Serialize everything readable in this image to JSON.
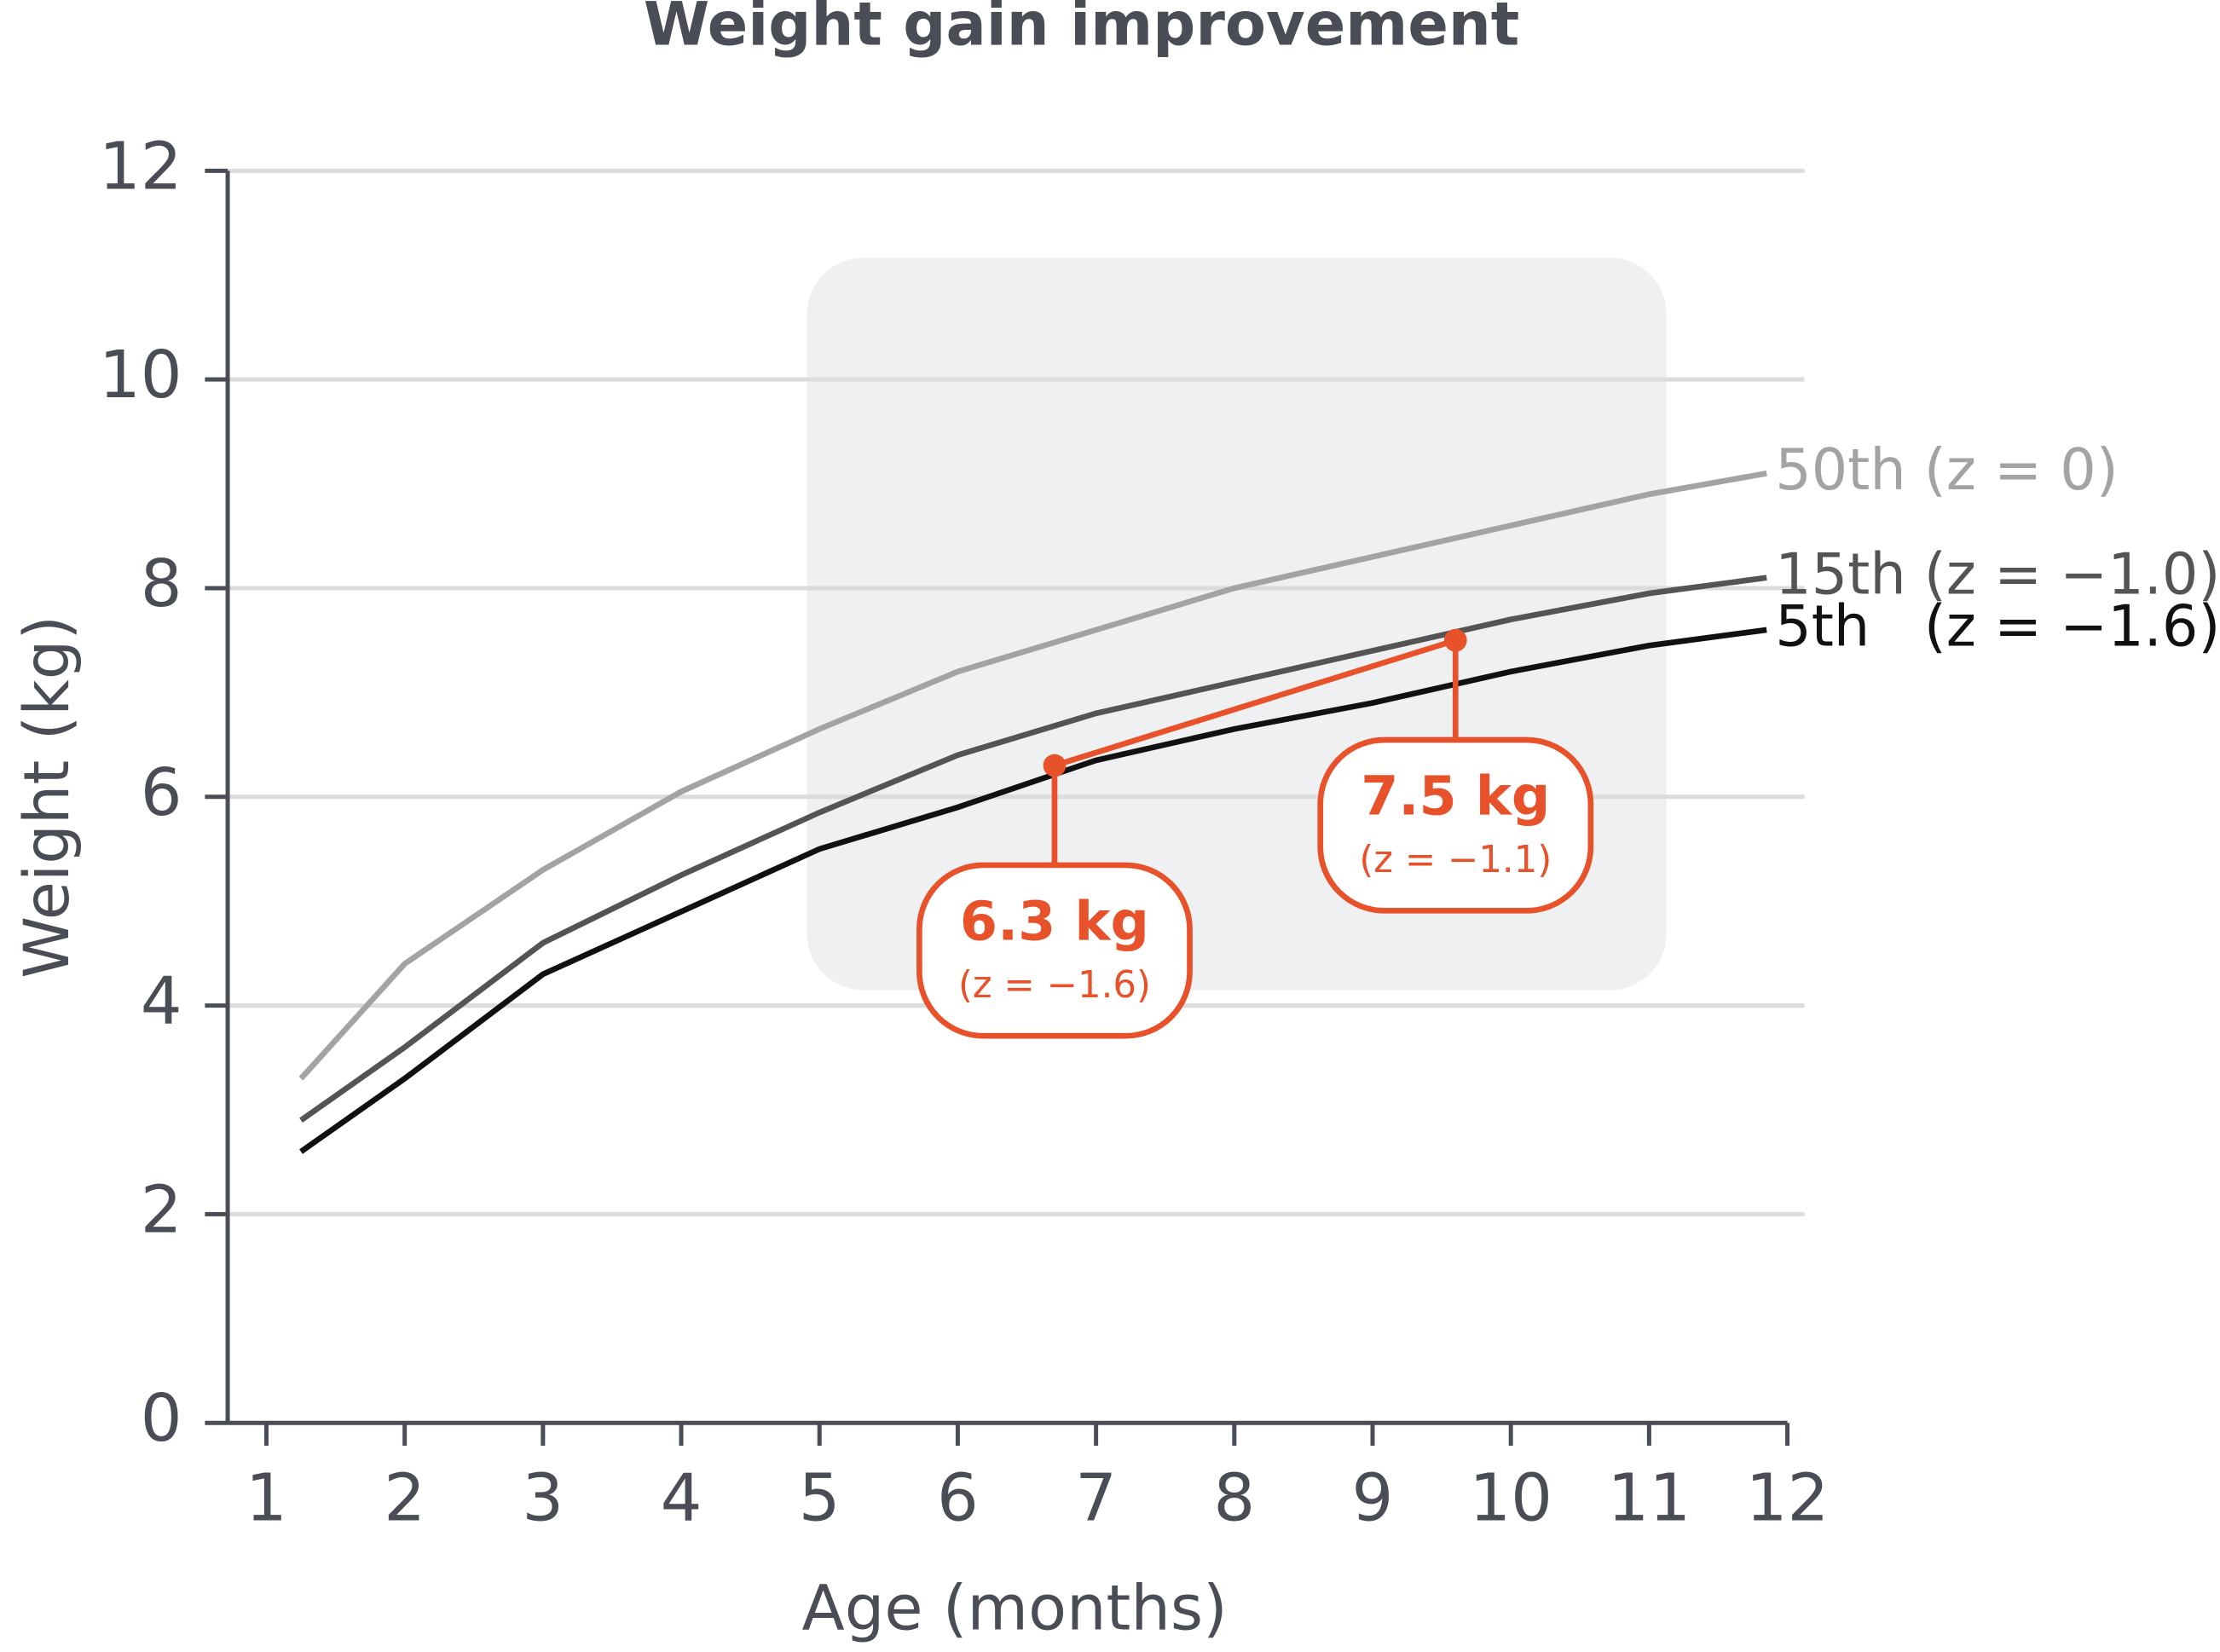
{
  "chart_data": {
    "type": "line",
    "title": "Weight gain improvement",
    "x_label": "Age (months)",
    "y_label": "Weight (kg)",
    "x": [
      1.25,
      2,
      3,
      4,
      5,
      6,
      7,
      8,
      9,
      10,
      11,
      11.85
    ],
    "series": [
      {
        "name": "50th (z = 0)",
        "color": "#a3a3a3",
        "values": [
          3.3,
          4.4,
          5.3,
          6.05,
          6.65,
          7.2,
          7.6,
          8.0,
          8.3,
          8.6,
          8.9,
          9.1
        ]
      },
      {
        "name": "15th (z = −1.0)",
        "color": "#545454",
        "values": [
          2.9,
          3.6,
          4.6,
          5.25,
          5.85,
          6.4,
          6.8,
          7.1,
          7.4,
          7.7,
          7.95,
          8.1
        ]
      },
      {
        "name": "5th   (z = −1.6)",
        "color": "#111111",
        "values": [
          2.6,
          3.3,
          4.3,
          4.9,
          5.5,
          5.9,
          6.35,
          6.65,
          6.9,
          7.2,
          7.45,
          7.6
        ]
      }
    ],
    "highlight": {
      "color": "#e8522a",
      "x": [
        6.7,
        9.6
      ],
      "values": [
        6.3,
        7.5
      ],
      "value_labels": [
        "6.3 kg",
        "7.5 kg"
      ],
      "notes": [
        "(z = −1.6)",
        "(z = −1.1)"
      ]
    },
    "xlim": [
      0.72,
      12
    ],
    "xticks": [
      1,
      2,
      3,
      4,
      5,
      6,
      7,
      8,
      9,
      10,
      11,
      12
    ],
    "ylim": [
      0,
      12
    ],
    "yticks": [
      0,
      2,
      4,
      6,
      8,
      10,
      12
    ],
    "grid": true
  }
}
